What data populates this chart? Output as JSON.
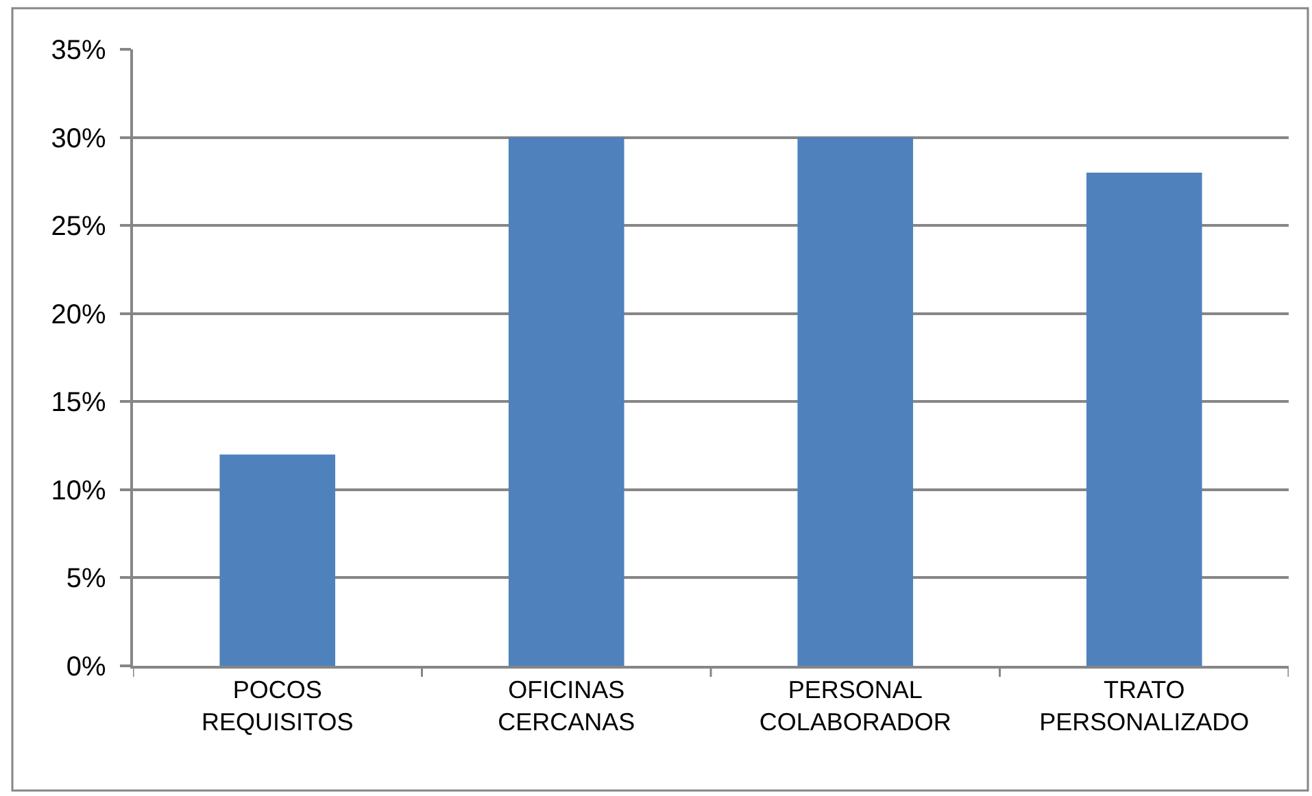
{
  "chart_data": {
    "type": "bar",
    "categories": [
      "POCOS REQUISITOS",
      "OFICINAS CERCANAS",
      "PERSONAL COLABORADOR",
      "TRATO PERSONALIZADO"
    ],
    "values": [
      12,
      30,
      30,
      28
    ],
    "color": "#4f81bd",
    "ylim": [
      0,
      35
    ],
    "yticks": [
      {
        "value": 0,
        "label": "0%"
      },
      {
        "value": 5,
        "label": "5%"
      },
      {
        "value": 10,
        "label": "10%"
      },
      {
        "value": 15,
        "label": "15%"
      },
      {
        "value": 20,
        "label": "20%"
      },
      {
        "value": 25,
        "label": "25%"
      },
      {
        "value": 30,
        "label": "30%"
      },
      {
        "value": 35,
        "label": "35%"
      }
    ],
    "grid": "y"
  }
}
